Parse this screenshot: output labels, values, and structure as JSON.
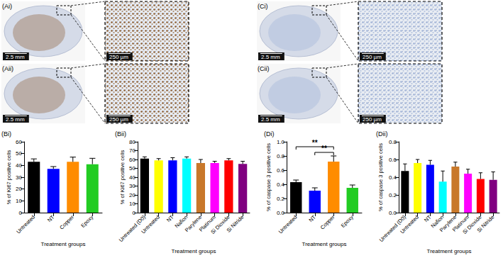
{
  "image_panels": [
    {
      "label": "(Ai)",
      "scale_bars": [
        "2.5 mm",
        "250 µm"
      ],
      "color": "#8a5a2e"
    },
    {
      "label": "(Aii)",
      "scale_bars": [
        "2.5 mm",
        "250 µm"
      ],
      "color": "#8a5a2e"
    },
    {
      "label": "(Ci)",
      "scale_bars": [
        "2.5 mm",
        "250 µm"
      ],
      "color": "#9fb1d6"
    },
    {
      "label": "(Cii)",
      "scale_bars": [
        "2.5 mm",
        "250 µm"
      ],
      "color": "#9fb1d6"
    }
  ],
  "chart_data": [
    {
      "type": "bar",
      "title": "(Bi)",
      "categories": [
        "Untreated",
        "NT",
        "Copper",
        "Epoxy"
      ],
      "values": [
        43,
        37,
        43,
        41
      ],
      "errors": [
        2.5,
        2,
        4,
        5
      ],
      "colors": [
        "#000000",
        "#0000ff",
        "#ff8c00",
        "#22cc22"
      ],
      "xlabel": "Treatment groups",
      "ylabel": "% of Ki67 positive cells",
      "ylim": [
        0,
        60
      ],
      "yticks": [
        0,
        10,
        20,
        30,
        40,
        50,
        60
      ],
      "grid": false
    },
    {
      "type": "bar",
      "title": "(Bii)",
      "categories": [
        "Untreated (D0)",
        "Untreated",
        "NT",
        "Nafion",
        "Parylene",
        "Platinum",
        "Si Dioxide",
        "Si Nitride"
      ],
      "values": [
        61,
        59,
        59,
        61,
        56,
        56,
        59,
        55
      ],
      "errors": [
        2,
        2,
        3,
        2,
        4,
        2,
        2,
        3
      ],
      "colors": [
        "#000000",
        "#ffff00",
        "#0000ff",
        "#00ffff",
        "#c8782a",
        "#ff00ff",
        "#ff0000",
        "#800080"
      ],
      "xlabel": "Treatment groups",
      "ylabel": "% of Ki67 positive cells",
      "ylim": [
        0,
        80
      ],
      "yticks": [
        0,
        10,
        20,
        30,
        40,
        50,
        60,
        70,
        80
      ],
      "grid": false
    },
    {
      "type": "bar",
      "title": "(Di)",
      "categories": [
        "Untreated",
        "NT",
        "Copper",
        "Epoxy"
      ],
      "values": [
        0.43,
        0.31,
        0.72,
        0.35
      ],
      "errors": [
        0.03,
        0.04,
        0.08,
        0.04
      ],
      "colors": [
        "#000000",
        "#0000ff",
        "#ff8c00",
        "#22cc22"
      ],
      "xlabel": "Treatment groups",
      "ylabel": "% of caspase 3 positive cells",
      "ylim": [
        0,
        1.0
      ],
      "yticks": [
        {
          "value": 0,
          "label": "0.0"
        },
        0.2,
        0.4,
        0.6,
        0.8,
        {
          "value": 1,
          "label": "1.0"
        }
      ],
      "significance": [
        {
          "from": "Untreated",
          "to": "Copper",
          "y": 0.93,
          "label": "**"
        },
        {
          "from": "NT",
          "to": "Copper",
          "y": 0.85,
          "label": "**"
        }
      ],
      "grid": false
    },
    {
      "type": "bar",
      "title": "(Dii)",
      "categories": [
        "Untreated (D0)",
        "Untreated",
        "NT",
        "Nafion",
        "Parylene",
        "Platinum",
        "Si Dioxide",
        "Si Nitride"
      ],
      "values": [
        0.47,
        0.56,
        0.54,
        0.35,
        0.52,
        0.44,
        0.38,
        0.37
      ],
      "errors": [
        0.08,
        0.04,
        0.05,
        0.12,
        0.05,
        0.05,
        0.07,
        0.09
      ],
      "colors": [
        "#000000",
        "#ffff00",
        "#0000ff",
        "#00ffff",
        "#c8782a",
        "#ff00ff",
        "#ff0000",
        "#800080"
      ],
      "xlabel": "Treatment groups",
      "ylabel": "% of caspase 3 positive cells",
      "ylim": [
        0,
        0.8
      ],
      "yticks": [
        {
          "value": 0,
          "label": "0.0"
        },
        0.2,
        0.4,
        0.6,
        0.8
      ],
      "grid": false
    }
  ]
}
